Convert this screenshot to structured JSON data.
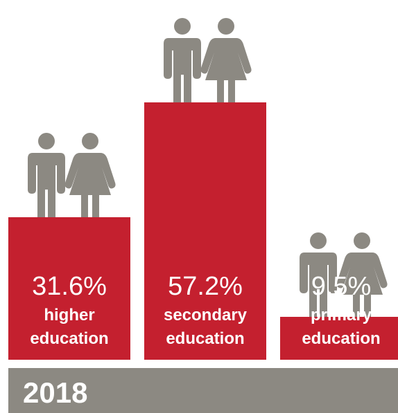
{
  "chart_data": {
    "type": "bar",
    "categories": [
      "higher education",
      "secondary education",
      "primary education"
    ],
    "labels": [
      {
        "value_text": "31.6%",
        "line1": "higher",
        "line2": "education"
      },
      {
        "value_text": "57.2%",
        "line1": "secondary",
        "line2": "education"
      },
      {
        "value_text": "9.5%",
        "line1": "primary",
        "line2": "education"
      }
    ],
    "values": [
      31.6,
      57.2,
      9.5
    ],
    "year": "2018",
    "colors": {
      "bar": "#c4202f",
      "figure": "#8c8982",
      "band": "#8c8982",
      "text": "#ffffff"
    }
  }
}
